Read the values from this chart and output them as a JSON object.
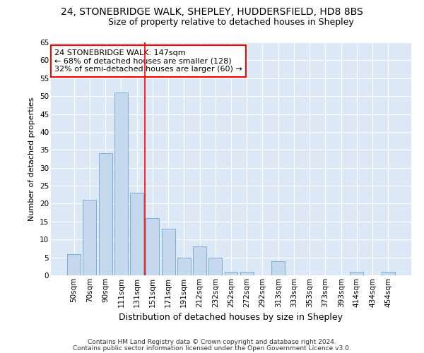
{
  "title1": "24, STONEBRIDGE WALK, SHEPLEY, HUDDERSFIELD, HD8 8BS",
  "title2": "Size of property relative to detached houses in Shepley",
  "xlabel": "Distribution of detached houses by size in Shepley",
  "ylabel": "Number of detached properties",
  "categories": [
    "50sqm",
    "70sqm",
    "90sqm",
    "111sqm",
    "131sqm",
    "151sqm",
    "171sqm",
    "191sqm",
    "212sqm",
    "232sqm",
    "252sqm",
    "272sqm",
    "292sqm",
    "313sqm",
    "333sqm",
    "353sqm",
    "373sqm",
    "393sqm",
    "414sqm",
    "434sqm",
    "454sqm"
  ],
  "values": [
    6,
    21,
    34,
    51,
    23,
    16,
    13,
    5,
    8,
    5,
    1,
    1,
    0,
    4,
    0,
    0,
    0,
    0,
    1,
    0,
    1
  ],
  "bar_color": "#c5d8ee",
  "bar_edge_color": "#7aafd4",
  "vline_x_index": 5,
  "vline_color": "red",
  "annotation_text": "24 STONEBRIDGE WALK: 147sqm\n← 68% of detached houses are smaller (128)\n32% of semi-detached houses are larger (60) →",
  "annotation_box_color": "white",
  "annotation_box_edge_color": "red",
  "ylim": [
    0,
    65
  ],
  "yticks": [
    0,
    5,
    10,
    15,
    20,
    25,
    30,
    35,
    40,
    45,
    50,
    55,
    60,
    65
  ],
  "background_color": "#dce8f5",
  "footer1": "Contains HM Land Registry data © Crown copyright and database right 2024.",
  "footer2": "Contains public sector information licensed under the Open Government Licence v3.0.",
  "title1_fontsize": 10,
  "title2_fontsize": 9,
  "xlabel_fontsize": 9,
  "ylabel_fontsize": 8,
  "tick_fontsize": 7.5,
  "annotation_fontsize": 8,
  "footer_fontsize": 6.5
}
